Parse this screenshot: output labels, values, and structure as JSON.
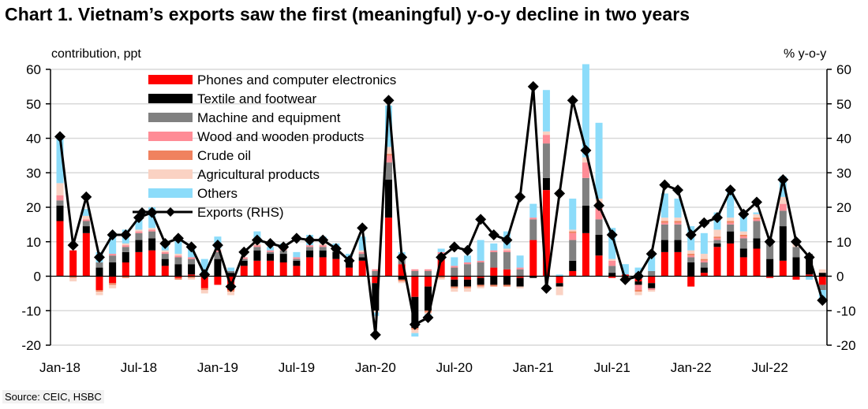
{
  "title": "Chart 1. Vietnam’s exports saw the first (meaningful) y-o-y decline in two years",
  "source": "Source: CEIC, HSBC",
  "chart_data": {
    "type": "bar",
    "subtype": "stacked-bar-with-line",
    "title": "Chart 1. Vietnam’s exports saw the first (meaningful) y-o-y decline in two years",
    "ylabel_left": "contribution,  ppt",
    "ylabel_right": "% y-o-y",
    "ylim_left": [
      -20,
      60
    ],
    "ylim_right": [
      -20,
      60
    ],
    "yticks": [
      60,
      50,
      40,
      30,
      20,
      10,
      0,
      -10,
      -20
    ],
    "grid": true,
    "legend_position": "top-left",
    "x_tick_labels": [
      "Jan-18",
      "Jul-18",
      "Jan-19",
      "Jul-19",
      "Jan-20",
      "Jul-20",
      "Jan-21",
      "Jul-21",
      "Jan-22",
      "Jul-22"
    ],
    "x_tick_indices": [
      0,
      6,
      12,
      18,
      24,
      30,
      36,
      42,
      48,
      54
    ],
    "x": [
      "Jan-18",
      "Feb-18",
      "Mar-18",
      "Apr-18",
      "May-18",
      "Jun-18",
      "Jul-18",
      "Aug-18",
      "Sep-18",
      "Oct-18",
      "Nov-18",
      "Dec-18",
      "Jan-19",
      "Feb-19",
      "Mar-19",
      "Apr-19",
      "May-19",
      "Jun-19",
      "Jul-19",
      "Aug-19",
      "Sep-19",
      "Oct-19",
      "Nov-19",
      "Dec-19",
      "Jan-20",
      "Feb-20",
      "Mar-20",
      "Apr-20",
      "May-20",
      "Jun-20",
      "Jul-20",
      "Aug-20",
      "Sep-20",
      "Oct-20",
      "Nov-20",
      "Dec-20",
      "Jan-21",
      "Feb-21",
      "Mar-21",
      "Apr-21",
      "May-21",
      "Jun-21",
      "Jul-21",
      "Aug-21",
      "Sep-21",
      "Oct-21",
      "Nov-21",
      "Dec-21",
      "Jan-22",
      "Feb-22",
      "Mar-22",
      "Apr-22",
      "May-22",
      "Jun-22",
      "Jul-22",
      "Aug-22",
      "Sep-22",
      "Oct-22",
      "Nov-22"
    ],
    "series": [
      {
        "name": "Phones and computer electronics",
        "color": "#ff0000",
        "kind": "bar",
        "values": [
          16,
          7.5,
          12.5,
          -4,
          -2,
          4,
          7,
          7.5,
          3,
          -0.5,
          0.5,
          -3.5,
          -2.5,
          -4,
          3,
          4.5,
          4.5,
          4,
          3,
          5.5,
          5.5,
          5,
          2.5,
          4.5,
          -2,
          17,
          3.5,
          -6,
          -3,
          5.5,
          -1,
          -1,
          -0.5,
          2.5,
          2,
          -0.5,
          10.5,
          25,
          -2,
          1.5,
          12.5,
          6,
          -0.5,
          0.5,
          -1.5,
          -2,
          7,
          7,
          -3,
          1,
          8.5,
          9.5,
          5.5,
          8,
          -0.5,
          4.5,
          -1,
          0.5,
          -2.5
        ]
      },
      {
        "name": "Textile and footwear",
        "color": "#000000",
        "kind": "bar",
        "values": [
          4.5,
          0,
          2,
          2.5,
          4,
          3,
          3.5,
          3.5,
          2,
          3.5,
          3,
          0.5,
          5,
          1,
          1.5,
          3,
          2,
          2.5,
          1.5,
          2,
          2,
          2,
          1.5,
          1,
          -8,
          11,
          -1,
          -9,
          -7,
          0,
          -2,
          -2,
          -2,
          -2.5,
          -2.5,
          -2.5,
          -0.5,
          3.5,
          -1,
          3,
          8,
          6,
          1,
          0,
          -1,
          -1.5,
          3.5,
          3.5,
          4,
          1.5,
          1,
          3.5,
          2.5,
          3,
          5,
          10,
          5.5,
          5.5,
          1
        ]
      },
      {
        "name": "Machine and equipment",
        "color": "#808080",
        "kind": "bar",
        "values": [
          1.5,
          0,
          1.5,
          1.5,
          2,
          1.5,
          2,
          2,
          1.5,
          2,
          1.5,
          0,
          2,
          0.5,
          0.5,
          1,
          0.5,
          1,
          0.5,
          1,
          1,
          1,
          1,
          1,
          1.5,
          5,
          1.5,
          1.5,
          1.5,
          1,
          2.5,
          3.5,
          4,
          4.5,
          5,
          2,
          6,
          10,
          0,
          6,
          8,
          4.5,
          2,
          0,
          1,
          1.5,
          4.5,
          4.5,
          1.5,
          1.5,
          1,
          2,
          3,
          5,
          5,
          4.5,
          3,
          0.5,
          -1.5
        ]
      },
      {
        "name": "Wood and wooden products",
        "color": "#ff8c96",
        "kind": "bar",
        "values": [
          1.5,
          0,
          0.5,
          0,
          0.5,
          0.5,
          0.5,
          0.5,
          0.5,
          0.5,
          0.5,
          0,
          0.5,
          0,
          0.5,
          0.5,
          0.5,
          0.5,
          0.5,
          0.5,
          0.5,
          0.5,
          0.5,
          0.5,
          0.5,
          2,
          0.5,
          0.5,
          0.5,
          0.5,
          0.5,
          0.5,
          0.5,
          0.5,
          0.5,
          0.5,
          0.5,
          2.5,
          0,
          2,
          4.5,
          4,
          1.5,
          0,
          -1.5,
          -0.5,
          0.5,
          0.5,
          0.5,
          0.5,
          0.5,
          0.5,
          0.5,
          0.5,
          0,
          2,
          0,
          0,
          0
        ]
      },
      {
        "name": "Crude oil",
        "color": "#f0825f",
        "kind": "bar",
        "values": [
          0,
          -0.5,
          0,
          -0.5,
          -0.5,
          -0.5,
          0,
          0,
          0,
          -0.5,
          -0.5,
          -0.5,
          0,
          -0.5,
          0,
          0,
          0,
          0,
          0,
          0,
          0,
          0,
          0,
          0,
          0,
          0.5,
          -0.5,
          -0.5,
          -0.5,
          -0.5,
          -0.5,
          -0.5,
          -0.5,
          -0.5,
          -0.5,
          0,
          0,
          0,
          0,
          0.5,
          0,
          0.5,
          0,
          -0.5,
          -0.5,
          0,
          0.5,
          0.5,
          0.5,
          0.5,
          0.5,
          0.5,
          0.5,
          0.5,
          0,
          0,
          0,
          0,
          0
        ]
      },
      {
        "name": "Agricultural products",
        "color": "#fad2c3",
        "kind": "bar",
        "values": [
          3.5,
          -1,
          1,
          -1,
          -1,
          0.5,
          0.5,
          0.5,
          0.5,
          0.5,
          -0.5,
          -1,
          0.5,
          -1,
          0,
          0.5,
          0,
          0,
          0,
          0,
          0.5,
          0,
          0,
          0.5,
          -0.5,
          2,
          -0.5,
          -1,
          -0.5,
          -0.5,
          -1,
          -1,
          -0.5,
          0,
          0.5,
          -0.5,
          0,
          1,
          -2.5,
          0.5,
          1.5,
          1.5,
          0.5,
          -1,
          -1,
          -0.5,
          1,
          1,
          1,
          1.5,
          2,
          1,
          1,
          1,
          0,
          2,
          1,
          0,
          1
        ]
      },
      {
        "name": "Others",
        "color": "#8cdcfa",
        "kind": "bar",
        "values": [
          13,
          0,
          2,
          3,
          5.5,
          4,
          4,
          6,
          2,
          4,
          3.5,
          4.5,
          3.5,
          1,
          0,
          3.5,
          1,
          1.5,
          1.5,
          3,
          2,
          1,
          1,
          4,
          -1,
          12,
          1.5,
          -1,
          -1.5,
          1,
          2.5,
          2,
          6,
          2,
          5,
          3.5,
          4,
          12,
          0.5,
          9,
          27,
          22,
          9,
          3,
          1.5,
          4.5,
          7,
          5.5,
          7,
          6,
          5,
          8,
          5,
          0.5,
          0,
          6,
          0.5,
          -1,
          -2.5
        ]
      },
      {
        "name": "Exports (RHS)",
        "color": "#000000",
        "kind": "line",
        "marker": "diamond",
        "values": [
          40.5,
          9,
          23,
          5.5,
          12,
          12,
          17,
          18.5,
          9.5,
          11,
          8.5,
          0.5,
          9,
          -3,
          7,
          10.5,
          9.5,
          8.5,
          11,
          10.5,
          10.5,
          8,
          4.5,
          14,
          -17,
          51,
          5.5,
          -14,
          -12,
          5.5,
          8.5,
          7.5,
          16.5,
          12,
          10.5,
          23,
          55,
          -3.5,
          24,
          51,
          36.5,
          20.5,
          12,
          -1,
          0,
          6.5,
          26.5,
          25,
          12,
          15.5,
          17,
          25,
          18,
          21.5,
          10,
          28,
          10,
          5.5,
          -7
        ]
      }
    ]
  }
}
